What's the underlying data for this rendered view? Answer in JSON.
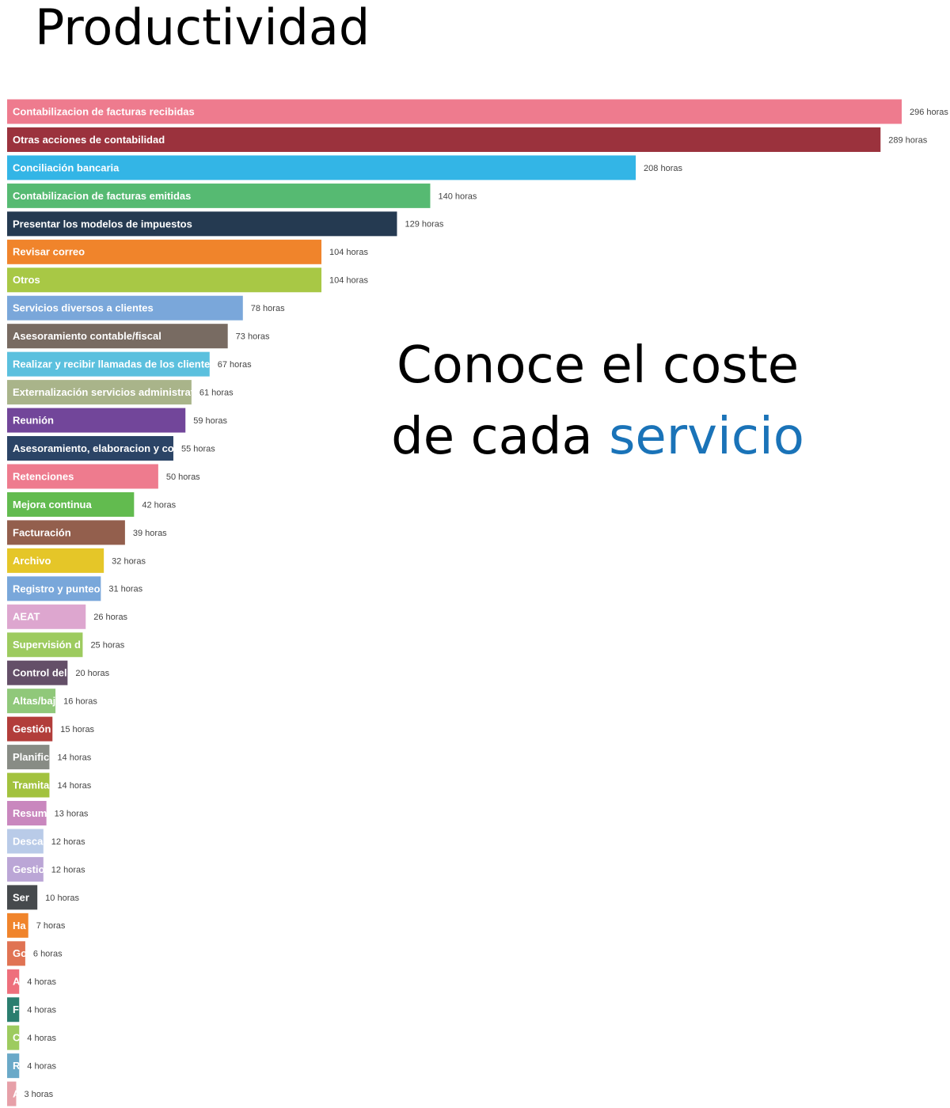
{
  "chart_data": {
    "type": "bar",
    "orientation": "horizontal",
    "title": "Productividad",
    "annotation": {
      "line1": "Conoce el coste",
      "line2": "de cada",
      "highlight": "servicio",
      "highlight_color": "#1a73b8"
    },
    "categories": [
      "Contabilizacion de facturas recibidas",
      "Otras acciones de contabilidad",
      "Conciliación bancaria",
      "Contabilizacion de facturas emitidas",
      "Presentar los modelos de impuestos",
      "Revisar correo",
      "Otros",
      "Servicios diversos a clientes",
      "Asesoramiento contable/fiscal",
      "Realizar y recibir llamadas de los clientes",
      "Externalización servicios administrati",
      "Reunión",
      "Asesoramiento, elaboracion y com",
      "Retenciones",
      "Mejora continua",
      "Facturación",
      "Archivo",
      "Registro y punteo c",
      "AEAT",
      "Supervisión d",
      "Control del",
      "Altas/baj",
      "Gestión",
      "Planifica",
      "Tramita",
      "Resum",
      "Descar",
      "Gestio",
      "Ser",
      "Ha",
      "Go",
      "A",
      "F",
      "C",
      "R",
      "A"
    ],
    "values": [
      296,
      289,
      208,
      140,
      129,
      104,
      104,
      78,
      73,
      67,
      61,
      59,
      55,
      50,
      42,
      39,
      32,
      31,
      26,
      25,
      20,
      16,
      15,
      14,
      14,
      13,
      12,
      12,
      10,
      7,
      6,
      4,
      4,
      4,
      4,
      3
    ],
    "value_labels": [
      "296 horas",
      "289 horas",
      "208 horas",
      "140 horas",
      "129 horas",
      "104 horas",
      "104 horas",
      "78 horas",
      "73 horas",
      "67 horas",
      "61 horas",
      "59 horas",
      "55 horas",
      "50 horas",
      "42 horas",
      "39 horas",
      "32 horas",
      "31 horas",
      "26 horas",
      "25 horas",
      "20 horas",
      "16 horas",
      "15 horas",
      "14 horas",
      "14 horas",
      "13 horas",
      "12 horas",
      "12 horas",
      "10 horas",
      "7 horas",
      "6 horas",
      "4 horas",
      "4 horas",
      "4 horas",
      "4 horas",
      "3 horas"
    ],
    "colors": [
      "#ee7b8e",
      "#9b323d",
      "#33b5e6",
      "#56ba72",
      "#253a51",
      "#f0842b",
      "#a8c845",
      "#7aa7da",
      "#786b62",
      "#5bc0de",
      "#a9b48a",
      "#72469a",
      "#2b4466",
      "#ee7b8e",
      "#62bb4f",
      "#935f4d",
      "#e5c628",
      "#79a7da",
      "#dda6cf",
      "#9dcb5f",
      "#644f68",
      "#90c87a",
      "#b23d3a",
      "#888c85",
      "#a2c23e",
      "#c987be",
      "#b9cbe8",
      "#bba6d6",
      "#464a4d",
      "#f0842b",
      "#e07353",
      "#ee6f7c",
      "#2a7e6f",
      "#9dcb5f",
      "#6aa9c8",
      "#e6a0a8"
    ]
  }
}
